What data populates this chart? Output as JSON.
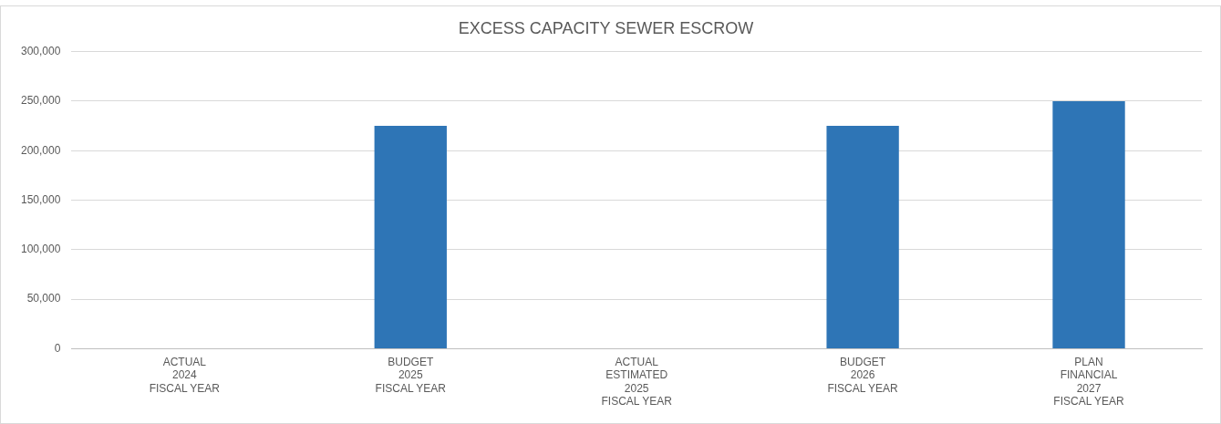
{
  "chart_data": {
    "type": "bar",
    "title": "EXCESS CAPACITY SEWER ESCROW",
    "categories": [
      "ACTUAL\n2024\nFISCAL YEAR",
      "BUDGET\n2025\nFISCAL YEAR",
      "ACTUAL\nESTIMATED\n2025\nFISCAL YEAR",
      "BUDGET\n2026\nFISCAL YEAR",
      "PLAN\nFINANCIAL\n2027\nFISCAL YEAR"
    ],
    "values": [
      0,
      225000,
      0,
      225000,
      250000
    ],
    "color": "#2e75b6",
    "ylim": [
      0,
      300000
    ],
    "yticks": [
      0,
      {
        "value": 50000,
        "label": "50,000"
      },
      {
        "value": 100000,
        "label": "100,000"
      },
      {
        "value": 150000,
        "label": "150,000"
      },
      {
        "value": 200000,
        "label": "200,000"
      },
      {
        "value": 250000,
        "label": "250,000"
      },
      {
        "value": 300000,
        "label": "300,000"
      }
    ],
    "grid": "y",
    "legend": false
  }
}
